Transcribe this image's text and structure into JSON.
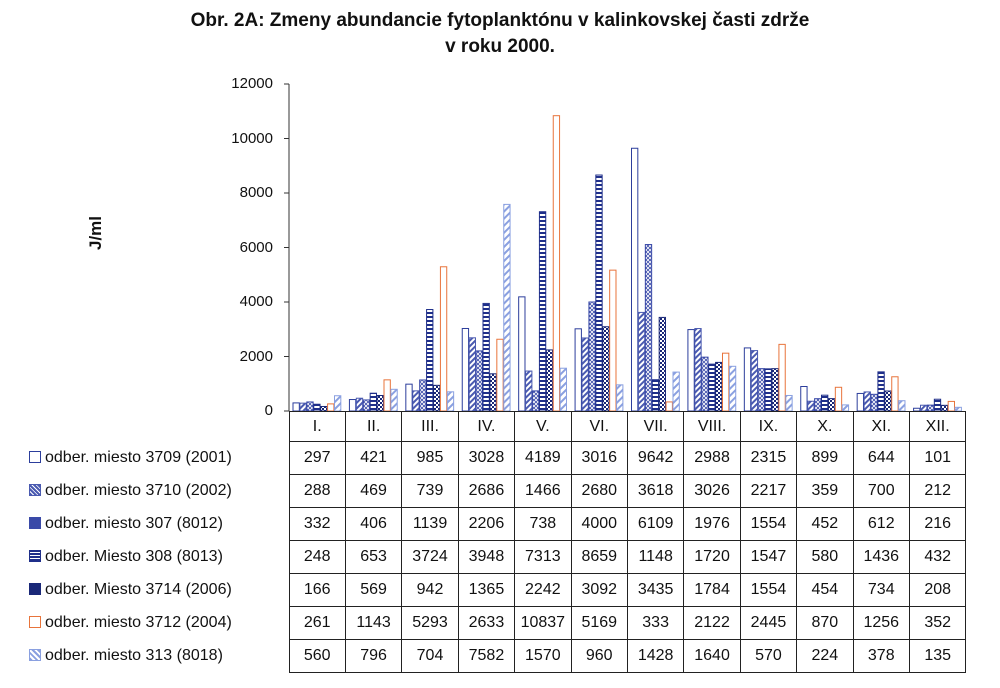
{
  "chart_data": {
    "type": "bar",
    "title": "Obr. 2A: Zmeny abundancie fytoplanktónu v kalinkovskej časti zdrže",
    "subtitle": "v roku 2000.",
    "ylabel": "J/ml",
    "ylim": [
      0,
      12000
    ],
    "yticks": [
      0,
      2000,
      4000,
      6000,
      8000,
      10000,
      12000
    ],
    "grid": false,
    "legend": "data table below chart",
    "categories": [
      "I.",
      "II.",
      "III.",
      "IV.",
      "V.",
      "VI.",
      "VII.",
      "VIII.",
      "IX.",
      "X.",
      "XI.",
      "XII."
    ],
    "series": [
      {
        "name": "odber. miesto 3709 (2001)",
        "color": "#2c3e9c",
        "pattern": "hollow",
        "values": [
          297,
          421,
          985,
          3028,
          4189,
          3016,
          9642,
          2988,
          2315,
          899,
          644,
          101
        ]
      },
      {
        "name": "odber. miesto 3710 (2002)",
        "color": "#4a5ab0",
        "pattern": "diagonal",
        "values": [
          288,
          469,
          739,
          2686,
          1466,
          2680,
          3618,
          3026,
          2217,
          359,
          700,
          212
        ]
      },
      {
        "name": "odber. miesto 307 (8012)",
        "color": "#3a4aa8",
        "pattern": "crosshatch",
        "values": [
          332,
          406,
          1139,
          2206,
          738,
          4000,
          6109,
          1976,
          1554,
          452,
          612,
          216
        ]
      },
      {
        "name": "odber. Miesto 308 (8013)",
        "color": "#1f2f8a",
        "pattern": "horizontal",
        "values": [
          248,
          653,
          3724,
          3948,
          7313,
          8659,
          1148,
          1720,
          1547,
          580,
          1436,
          432
        ]
      },
      {
        "name": "odber. Miesto 3714 (2006)",
        "color": "#1a2878",
        "pattern": "checker",
        "values": [
          166,
          569,
          942,
          1365,
          2242,
          3092,
          3435,
          1784,
          1554,
          454,
          734,
          208
        ]
      },
      {
        "name": "odber. miesto 3712 (2004)",
        "color": "#e8743b",
        "pattern": "hollow",
        "values": [
          261,
          1143,
          5293,
          2633,
          10837,
          5169,
          333,
          2122,
          2445,
          870,
          1256,
          352
        ]
      },
      {
        "name": "odber. miesto 313 (8018)",
        "color": "#8aa0e0",
        "pattern": "light-diagonal",
        "values": [
          560,
          796,
          704,
          7582,
          1570,
          960,
          1428,
          1640,
          570,
          224,
          378,
          135
        ]
      }
    ]
  }
}
